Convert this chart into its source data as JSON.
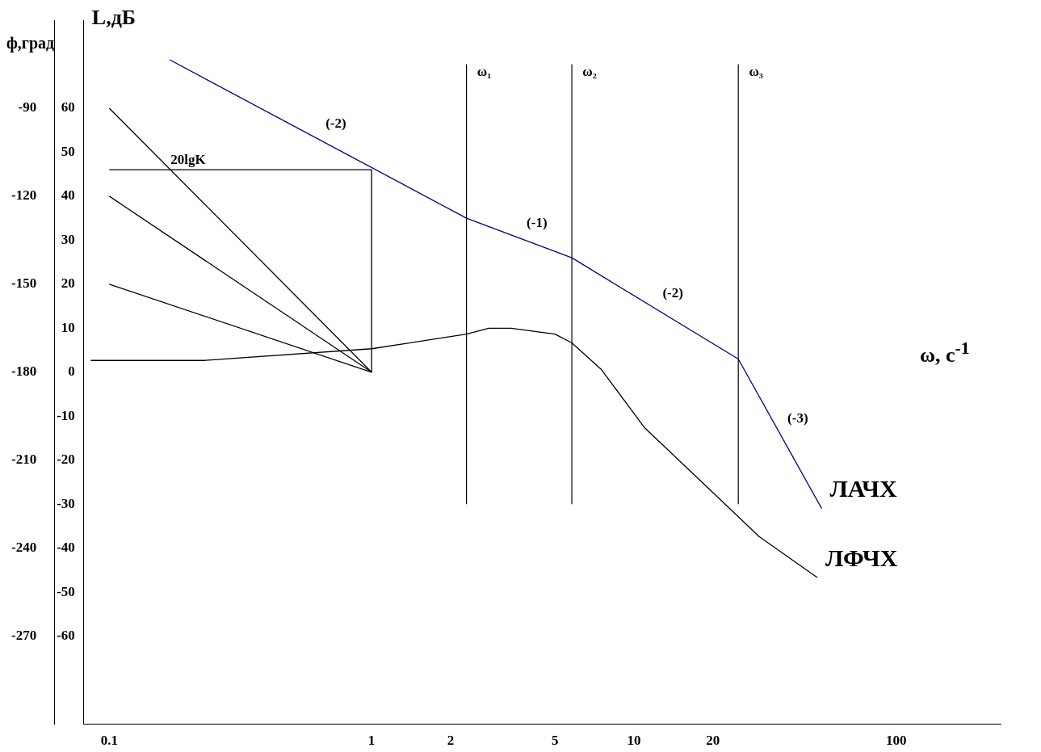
{
  "chart_data": {
    "type": "line",
    "xlabel": "ω, c$^{-1}$",
    "ylabel": "L,дБ",
    "y2label": "ф,град",
    "xlim": [
      0.08,
      250
    ],
    "xticks": [
      0.1,
      1,
      2,
      5,
      10,
      20,
      100
    ],
    "log": "x",
    "ylim": [
      -80,
      80
    ],
    "yticks": [
      -60,
      -50,
      -40,
      -30,
      -20,
      -10,
      0,
      10,
      20,
      30,
      40,
      50,
      60
    ],
    "y2lim": [
      -300,
      -60
    ],
    "y2ticks": [
      -270,
      -240,
      -210,
      -180,
      -150,
      -120,
      -90
    ],
    "series": [
      {
        "name": "ЛАЧХ",
        "color": "#000080",
        "x": [
          0.17,
          2.3,
          5.8,
          25,
          52
        ],
        "values": [
          71,
          35,
          26,
          3,
          -31
        ]
      },
      {
        "name": "ЛФЧХ",
        "color": "#000000",
        "axis": "y2",
        "x": [
          0.085,
          0.23,
          1,
          2.3,
          2.8,
          3.4,
          5,
          5.8,
          7.5,
          11,
          20,
          30,
          50
        ],
        "values": [
          -176,
          -176,
          -172,
          -167,
          -165,
          -165,
          -167,
          -170,
          -179,
          -199,
          -221,
          -236,
          -250
        ]
      },
      {
        "color": "#000000",
        "x": [
          0.1,
          1
        ],
        "values": [
          60,
          0
        ]
      },
      {
        "color": "#000000",
        "x": [
          0.1,
          1
        ],
        "values": [
          40,
          0
        ]
      },
      {
        "color": "#000000",
        "x": [
          0.1,
          1
        ],
        "values": [
          20,
          0
        ]
      },
      {
        "color": "#000000",
        "x": [
          0.1,
          1,
          1
        ],
        "values": [
          46,
          46,
          0
        ]
      }
    ],
    "ref_lines": [
      {
        "axis": "x",
        "value": 2.3,
        "label": "ω₁",
        "color": "#000000"
      },
      {
        "axis": "x",
        "value": 5.8,
        "label": "ω₂",
        "color": "#000000"
      },
      {
        "axis": "x",
        "value": 25,
        "label": "ω₃",
        "color": "#000000"
      }
    ],
    "annotations": [
      {
        "text": "20lgK",
        "x": 0.2,
        "y": 46
      },
      "(-2)",
      "(-1)",
      "(-2)",
      "(-3)"
    ],
    "grid": false,
    "legend": false,
    "marker": "none",
    "line_style": "solid"
  }
}
